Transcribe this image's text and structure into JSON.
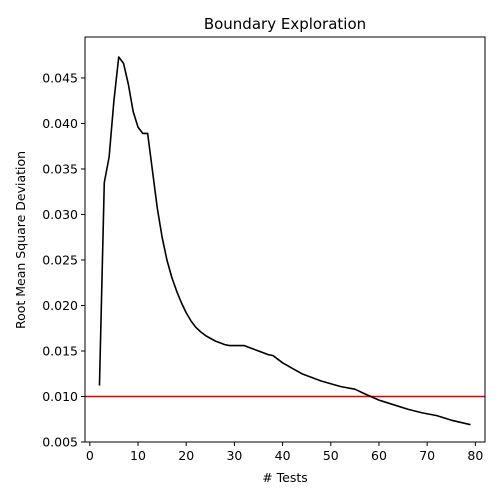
{
  "chart_data": {
    "type": "line",
    "title": "Boundary Exploration",
    "xlabel": "# Tests",
    "ylabel": "Root Mean Square Deviation",
    "xlim": [
      -1,
      82
    ],
    "ylim": [
      0.005,
      0.0495
    ],
    "xticks": [
      0,
      10,
      20,
      30,
      40,
      50,
      60,
      70,
      80
    ],
    "xtick_labels": [
      "0",
      "10",
      "20",
      "30",
      "40",
      "50",
      "60",
      "70",
      "80"
    ],
    "yticks": [
      0.005,
      0.01,
      0.015,
      0.02,
      0.025,
      0.03,
      0.035,
      0.04,
      0.045
    ],
    "ytick_labels": [
      "0.005",
      "0.010",
      "0.015",
      "0.020",
      "0.025",
      "0.030",
      "0.035",
      "0.040",
      "0.045"
    ],
    "grid": false,
    "legend": "none",
    "series": [
      {
        "color": "#000000",
        "x": [
          2,
          3,
          4,
          5,
          6,
          7,
          8,
          9,
          10,
          11,
          12,
          13,
          14,
          15,
          16,
          17,
          18,
          19,
          20,
          21,
          22,
          23,
          24,
          25,
          26,
          27,
          28,
          29,
          30,
          31,
          32,
          33,
          34,
          35,
          36,
          37,
          38,
          39,
          40,
          42,
          44,
          46,
          48,
          50,
          52,
          55,
          57,
          60,
          63,
          66,
          69,
          72,
          75,
          79
        ],
        "y": [
          0.0112,
          0.0335,
          0.0363,
          0.0425,
          0.0473,
          0.0466,
          0.0443,
          0.0413,
          0.0396,
          0.0389,
          0.0389,
          0.0348,
          0.0307,
          0.0275,
          0.025,
          0.0231,
          0.0216,
          0.0203,
          0.0192,
          0.0183,
          0.0176,
          0.0171,
          0.0167,
          0.0164,
          0.0161,
          0.0159,
          0.0157,
          0.0156,
          0.0156,
          0.0156,
          0.0156,
          0.0154,
          0.0152,
          0.015,
          0.0148,
          0.0146,
          0.0145,
          0.0141,
          0.0137,
          0.0131,
          0.0125,
          0.0121,
          0.0117,
          0.0114,
          0.0111,
          0.0108,
          0.0103,
          0.0096,
          0.0091,
          0.0086,
          0.0082,
          0.0079,
          0.0074,
          0.0069
        ]
      }
    ],
    "reference_line": {
      "orientation": "horizontal",
      "y": 0.01,
      "color": "#e00000"
    }
  }
}
